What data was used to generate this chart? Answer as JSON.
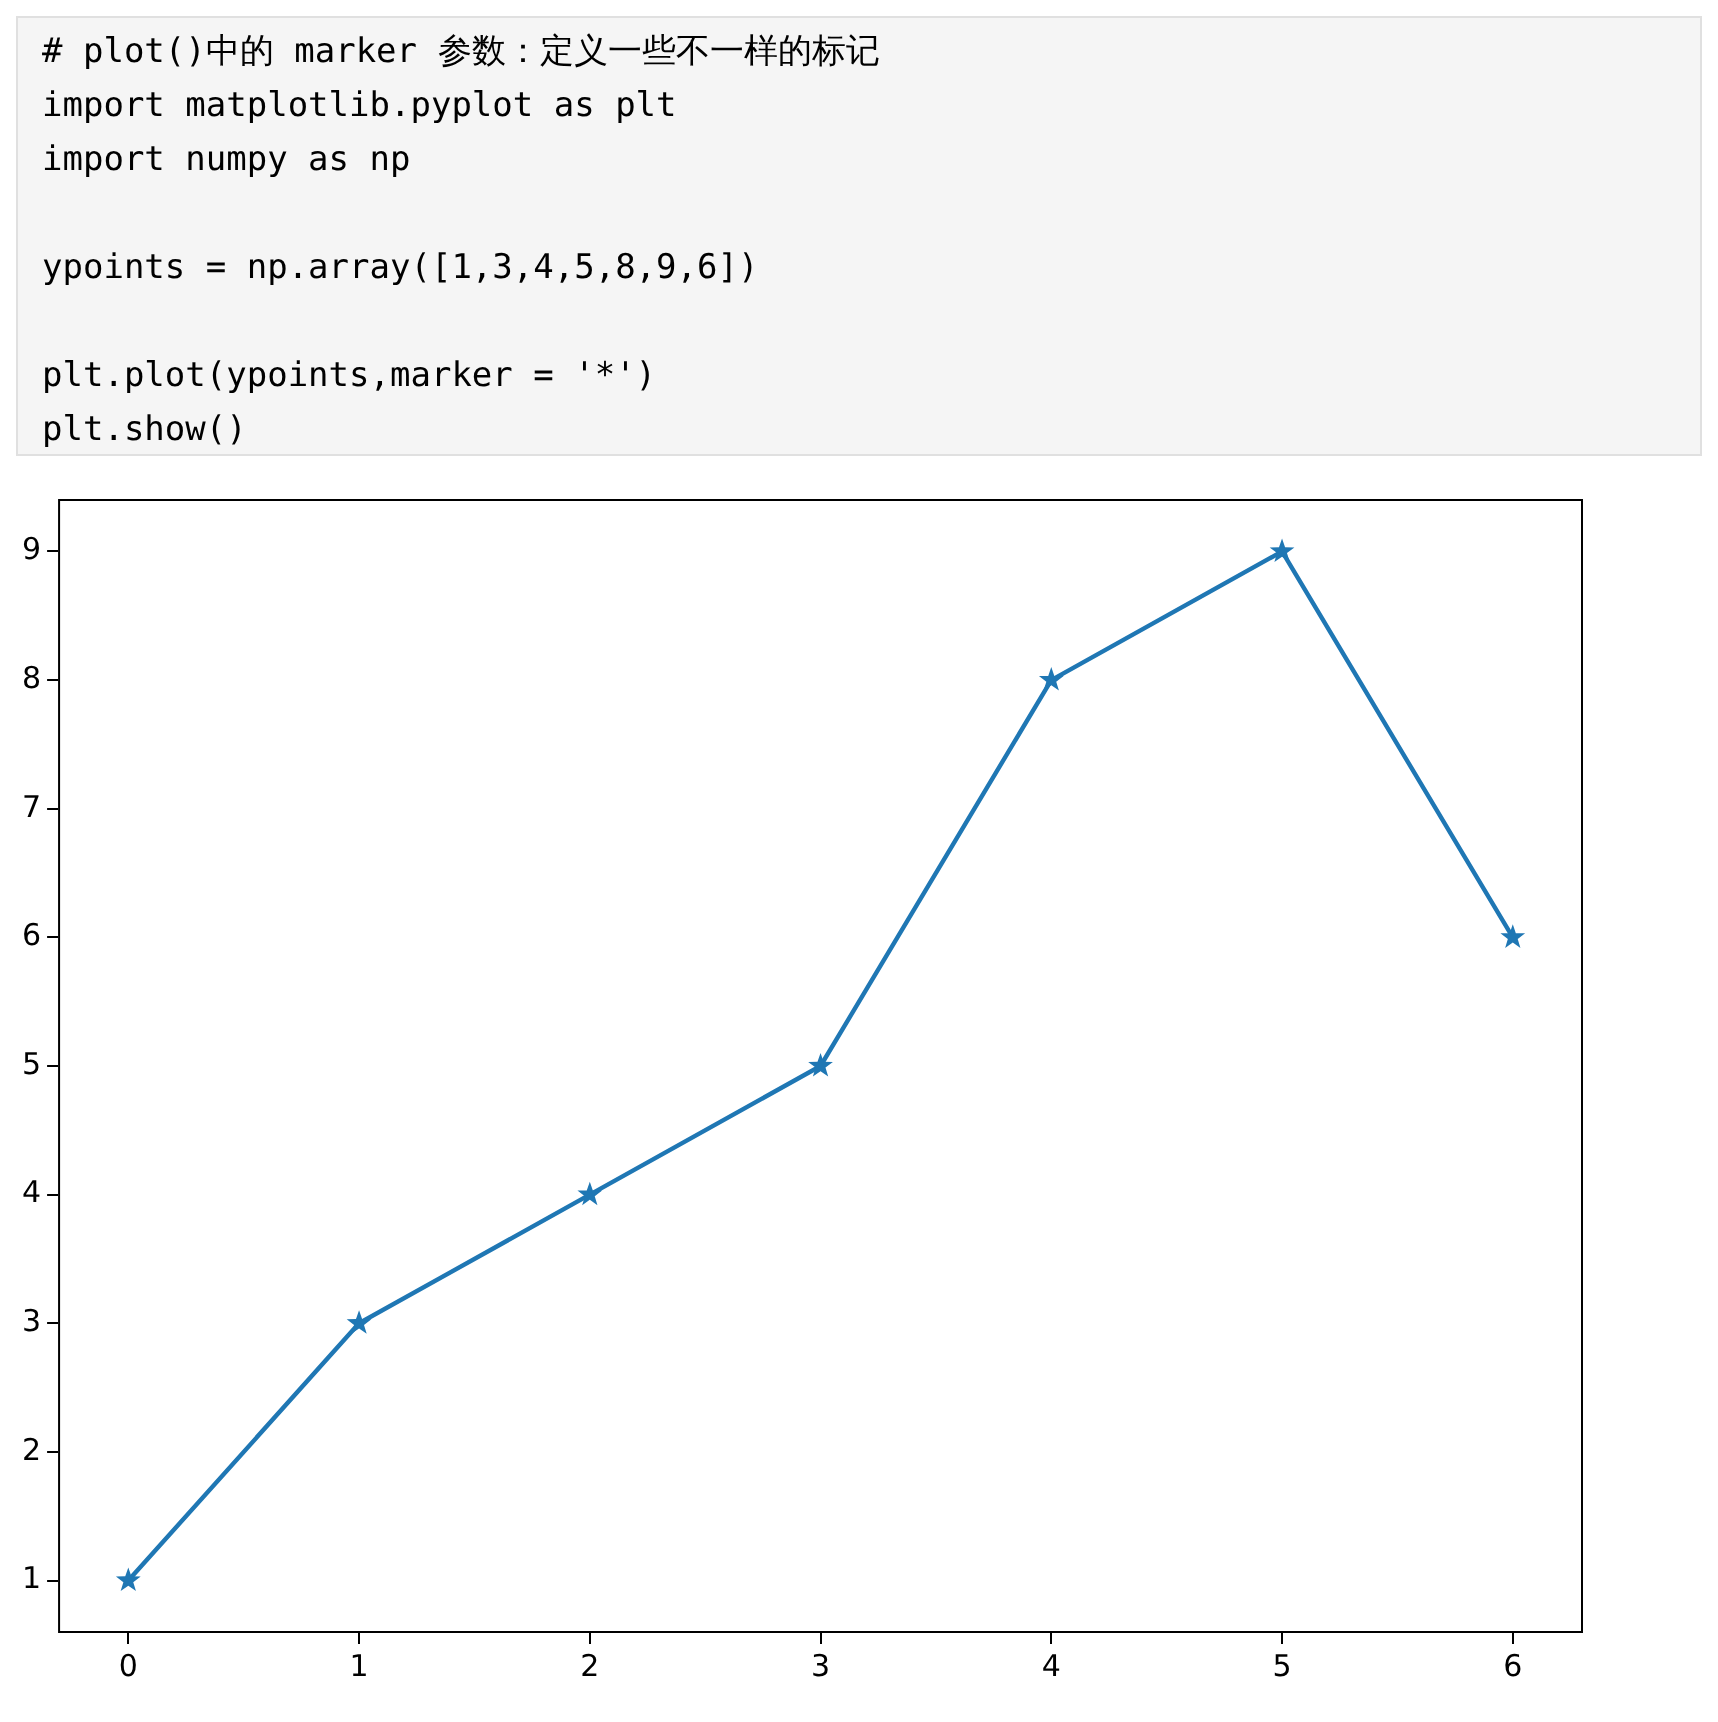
{
  "chart_data": {
    "type": "line",
    "annotations": [
      "# plot()中的 marker 参数：定义一些不一样的标记",
      "import matplotlib.pyplot as plt",
      "import numpy as np",
      "ypoints = np.array([1,3,4,5,8,9,6])",
      "plt.plot(ypoints,marker = '*')",
      "plt.show()"
    ],
    "x": [
      0,
      1,
      2,
      3,
      4,
      5,
      6
    ],
    "series": [
      {
        "color": "#1f77b4",
        "values": [
          1,
          3,
          4,
          5,
          8,
          9,
          6
        ]
      }
    ],
    "xlim": [
      -0.3,
      6.3
    ],
    "xticks": [
      0,
      1,
      2,
      3,
      4,
      5,
      6
    ],
    "ylim": [
      0.6,
      9.4
    ],
    "yticks": [
      1,
      2,
      3,
      4,
      5,
      6,
      7,
      8,
      9
    ],
    "marker": "star",
    "line_style": "solid",
    "grid": false,
    "legend": false
  }
}
